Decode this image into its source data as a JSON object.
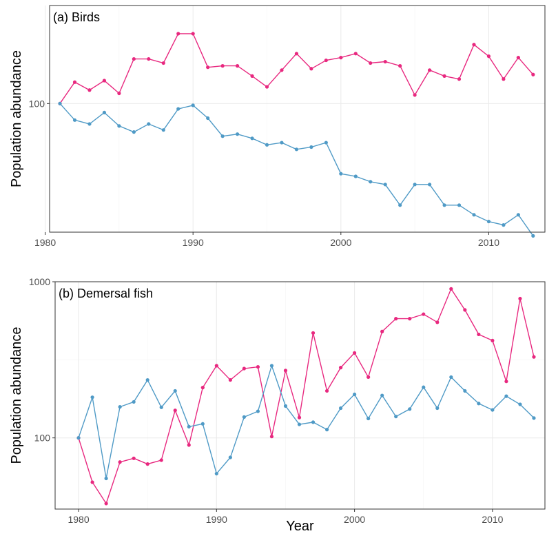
{
  "chart_data": [
    {
      "type": "line",
      "title": "(a) Birds",
      "xlabel": "",
      "ylabel": "Population abundance",
      "y_scale": "log",
      "xlim": [
        1980.3,
        2013.8
      ],
      "ylim": [
        48,
        175
      ],
      "x_ticks": [
        1980,
        1990,
        2000,
        2010
      ],
      "x_tick_labels": [
        "1980",
        "1990",
        "2000",
        "2010"
      ],
      "y_ticks": [
        100
      ],
      "y_tick_labels": [
        "100"
      ],
      "grid": true,
      "legend": "none",
      "x": [
        1981,
        1982,
        1983,
        1984,
        1985,
        1986,
        1987,
        1988,
        1989,
        1990,
        1991,
        1992,
        1993,
        1994,
        1995,
        1996,
        1997,
        1998,
        1999,
        2000,
        2001,
        2002,
        2003,
        2004,
        2005,
        2006,
        2007,
        2008,
        2009,
        2010,
        2011,
        2012,
        2013
      ],
      "series": [
        {
          "color": "#e8287f",
          "values": [
            100,
            113,
            108,
            114,
            106,
            129,
            129,
            126,
            149,
            149,
            123,
            124,
            124,
            117,
            110,
            121,
            133,
            122,
            128,
            130,
            133,
            126,
            127,
            124,
            105,
            121,
            117,
            115,
            140,
            131,
            115,
            130,
            118
          ]
        },
        {
          "color": "#4f9ac6",
          "values": [
            100,
            91,
            89,
            95,
            88,
            85,
            89,
            86,
            97,
            99,
            92,
            83,
            84,
            82,
            79,
            80,
            77,
            78,
            80,
            67,
            66,
            64,
            63,
            56,
            63,
            63,
            56,
            56,
            53,
            51,
            50,
            53,
            47
          ]
        }
      ]
    },
    {
      "type": "line",
      "title": "(b) Demersal fish",
      "xlabel": "Year",
      "ylabel": "Population abundance",
      "y_scale": "log",
      "xlim": [
        1978.3,
        2013.8
      ],
      "ylim": [
        35,
        1000
      ],
      "x_ticks": [
        1980,
        1990,
        2000,
        2010
      ],
      "x_tick_labels": [
        "1980",
        "1990",
        "2000",
        "2010"
      ],
      "y_ticks": [
        100,
        1000
      ],
      "y_tick_labels": [
        "100",
        "1000"
      ],
      "grid": true,
      "legend": "none",
      "x": [
        1980,
        1981,
        1982,
        1983,
        1984,
        1985,
        1986,
        1987,
        1988,
        1989,
        1990,
        1991,
        1992,
        1993,
        1994,
        1995,
        1996,
        1997,
        1998,
        1999,
        2000,
        2001,
        2002,
        2003,
        2004,
        2005,
        2006,
        2007,
        2008,
        2009,
        2010,
        2011,
        2012,
        2013
      ],
      "series": [
        {
          "color": "#e8287f",
          "values": [
            100,
            52,
            38,
            70,
            74,
            68,
            72,
            150,
            90,
            210,
            290,
            235,
            278,
            285,
            102,
            270,
            135,
            470,
            200,
            282,
            350,
            245,
            480,
            580,
            580,
            620,
            550,
            900,
            660,
            460,
            420,
            230,
            780,
            330
          ]
        },
        {
          "color": "#4f9ac6",
          "values": [
            100,
            182,
            55,
            158,
            170,
            235,
            157,
            200,
            118,
            123,
            59,
            75,
            136,
            148,
            290,
            160,
            122,
            126,
            113,
            155,
            190,
            133,
            187,
            137,
            153,
            211,
            155,
            245,
            200,
            166,
            151,
            185,
            164,
            134
          ]
        }
      ]
    }
  ]
}
